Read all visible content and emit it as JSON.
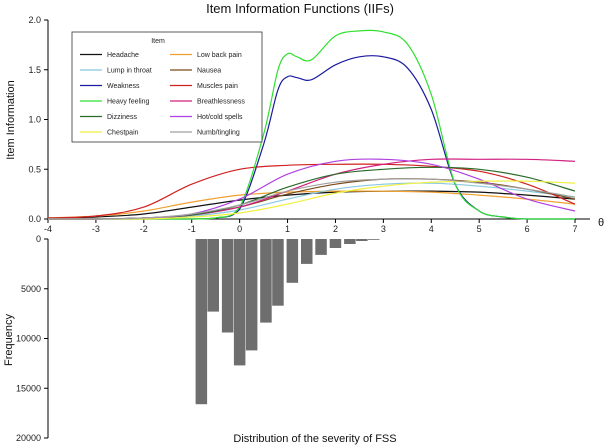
{
  "chart_data": [
    {
      "type": "line",
      "title": "Item Information Functions (IIFs)",
      "xlabel": "",
      "ylabel": "Item Information",
      "xlim": [
        -4,
        7
      ],
      "ylim": [
        0,
        2.0
      ],
      "x_ticks": [
        "-4",
        "-3",
        "-2",
        "-1",
        "0",
        "1",
        "2",
        "3",
        "4",
        "5",
        "6",
        "7"
      ],
      "y_ticks": [
        "0.0",
        "0.5",
        "1.0",
        "1.5",
        "2.0"
      ],
      "axis_end_label": "θ",
      "legend_title": "Item",
      "legend_position": "top-left",
      "series": [
        {
          "name": "Headache",
          "color": "#111111",
          "x": [
            -4,
            -3,
            -2,
            -1,
            0,
            1,
            2,
            3,
            4,
            5,
            6,
            7
          ],
          "y": [
            0.01,
            0.02,
            0.05,
            0.12,
            0.19,
            0.24,
            0.27,
            0.28,
            0.28,
            0.27,
            0.24,
            0.2
          ]
        },
        {
          "name": "Low back pain",
          "color": "#f0a030",
          "x": [
            -4,
            -3,
            -2,
            -1,
            0,
            1,
            2,
            3,
            4,
            5,
            6,
            7
          ],
          "y": [
            0.01,
            0.03,
            0.08,
            0.17,
            0.24,
            0.27,
            0.28,
            0.28,
            0.27,
            0.24,
            0.2,
            0.15
          ]
        },
        {
          "name": "Lump in throat",
          "color": "#88c8e0",
          "x": [
            -4,
            -3,
            -2,
            -1,
            0,
            1,
            2,
            3,
            4,
            5,
            6,
            7
          ],
          "y": [
            0.0,
            0.0,
            0.01,
            0.03,
            0.09,
            0.2,
            0.3,
            0.35,
            0.36,
            0.33,
            0.28,
            0.22
          ]
        },
        {
          "name": "Nausea",
          "color": "#7a4a1a",
          "x": [
            -4,
            -3,
            -2,
            -1,
            0,
            1,
            2,
            3,
            4,
            5,
            6,
            7
          ],
          "y": [
            0.0,
            0.0,
            0.01,
            0.04,
            0.12,
            0.25,
            0.35,
            0.4,
            0.4,
            0.37,
            0.3,
            0.2
          ]
        },
        {
          "name": "Weakness",
          "color": "#1a1aa0",
          "x": [
            -4,
            -3,
            -2,
            -1,
            -0.5,
            0,
            0.5,
            0.8,
            1,
            1.2,
            1.5,
            2,
            2.5,
            3,
            3.5,
            4,
            4.5,
            5,
            5.5,
            6,
            7
          ],
          "y": [
            0.0,
            0.0,
            0.0,
            0.0,
            0.01,
            0.1,
            0.75,
            1.3,
            1.43,
            1.42,
            1.4,
            1.55,
            1.63,
            1.63,
            1.52,
            1.1,
            0.35,
            0.08,
            0.02,
            0.0,
            0.0
          ]
        },
        {
          "name": "Muscles pain",
          "color": "#d02020",
          "x": [
            -4,
            -3,
            -2,
            -1,
            0,
            1,
            2,
            3,
            4,
            5,
            6,
            7
          ],
          "y": [
            0.01,
            0.03,
            0.12,
            0.35,
            0.5,
            0.54,
            0.55,
            0.55,
            0.53,
            0.48,
            0.35,
            0.15
          ]
        },
        {
          "name": "Heavy feeling",
          "color": "#30e030",
          "x": [
            -4,
            -3,
            -2,
            -1,
            -0.5,
            0,
            0.5,
            0.8,
            1,
            1.2,
            1.5,
            2,
            2.5,
            3,
            3.5,
            4,
            4.5,
            5,
            5.5,
            6,
            7
          ],
          "y": [
            0.0,
            0.0,
            0.0,
            0.0,
            0.01,
            0.12,
            0.85,
            1.5,
            1.66,
            1.63,
            1.6,
            1.84,
            1.89,
            1.88,
            1.76,
            1.25,
            0.35,
            0.08,
            0.02,
            0.0,
            0.0
          ]
        },
        {
          "name": "Breathlessness",
          "color": "#d02080",
          "x": [
            -4,
            -3,
            -2,
            -1,
            0,
            1,
            2,
            3,
            4,
            5,
            6,
            7
          ],
          "y": [
            0.0,
            0.0,
            0.01,
            0.04,
            0.12,
            0.28,
            0.45,
            0.55,
            0.6,
            0.6,
            0.6,
            0.58
          ]
        },
        {
          "name": "Dizziness",
          "color": "#2a6a2a",
          "x": [
            -4,
            -3,
            -2,
            -1,
            0,
            1,
            2,
            3,
            4,
            5,
            6,
            7
          ],
          "y": [
            0.0,
            0.0,
            0.01,
            0.04,
            0.14,
            0.32,
            0.45,
            0.5,
            0.52,
            0.5,
            0.42,
            0.28
          ]
        },
        {
          "name": "Hot/cold spells",
          "color": "#b040e0",
          "x": [
            -4,
            -3,
            -2,
            -1,
            0,
            1,
            2,
            3,
            4,
            5,
            6,
            7
          ],
          "y": [
            0.0,
            0.0,
            0.01,
            0.05,
            0.2,
            0.45,
            0.58,
            0.6,
            0.55,
            0.4,
            0.2,
            0.08
          ]
        },
        {
          "name": "Chestpain",
          "color": "#f0f040",
          "x": [
            -4,
            -3,
            -2,
            -1,
            0,
            1,
            2,
            3,
            4,
            5,
            6,
            7
          ],
          "y": [
            0.0,
            0.0,
            0.0,
            0.02,
            0.06,
            0.15,
            0.26,
            0.33,
            0.37,
            0.38,
            0.38,
            0.36
          ]
        },
        {
          "name": "Numb/tingling",
          "color": "#a0a0a0",
          "x": [
            -4,
            -3,
            -2,
            -1,
            0,
            1,
            2,
            3,
            4,
            5,
            6,
            7
          ],
          "y": [
            0.0,
            0.0,
            0.01,
            0.05,
            0.14,
            0.28,
            0.37,
            0.4,
            0.4,
            0.36,
            0.3,
            0.22
          ]
        }
      ]
    },
    {
      "type": "bar",
      "title": "",
      "xlabel": "Distribution of the severity of FSS",
      "ylabel": "Frequency",
      "ylim": [
        0,
        20000
      ],
      "y_ticks": [
        "0",
        "5000",
        "10000",
        "15000",
        "20000"
      ],
      "orientation": "downward",
      "bar_color": "#6e6e6e",
      "x": [
        -0.8,
        -0.55,
        -0.25,
        0,
        0.25,
        0.55,
        0.8,
        1.1,
        1.4,
        1.7,
        2.0,
        2.3,
        2.55,
        2.8
      ],
      "values": [
        16600,
        7300,
        9400,
        12700,
        11200,
        8400,
        6700,
        4400,
        2500,
        1600,
        900,
        500,
        200,
        80
      ]
    }
  ]
}
